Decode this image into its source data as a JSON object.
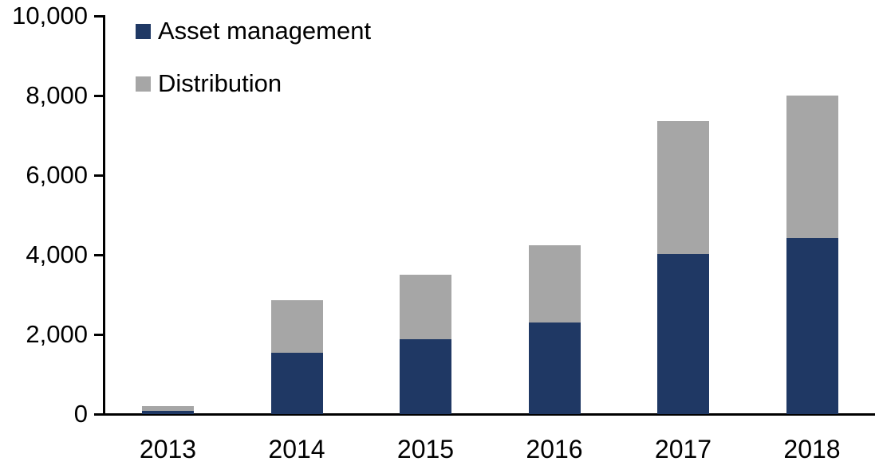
{
  "chart_data": {
    "type": "bar",
    "subtype": "stacked-column",
    "title": "",
    "xlabel": "",
    "ylabel": "",
    "categories": [
      "2013",
      "2014",
      "2015",
      "2016",
      "2017",
      "2018"
    ],
    "series": [
      {
        "name": "Asset management",
        "color": "#1F3864",
        "values": [
          90,
          1540,
          1880,
          2300,
          4020,
          4420
        ]
      },
      {
        "name": "Distribution",
        "color": "#A6A6A6",
        "values": [
          110,
          1320,
          1620,
          1940,
          3340,
          3580
        ]
      }
    ],
    "totals": [
      200,
      2860,
      3500,
      4240,
      7360,
      8000
    ],
    "ylim": [
      0,
      10000
    ],
    "yticks": [
      {
        "value": 0,
        "label": "0"
      },
      {
        "value": 2000,
        "label": "2,000"
      },
      {
        "value": 4000,
        "label": "4,000"
      },
      {
        "value": 6000,
        "label": "6,000"
      },
      {
        "value": 8000,
        "label": "8,000"
      },
      {
        "value": 10000,
        "label": "10,000"
      }
    ],
    "grid": false,
    "legend_position": "top-left-inside",
    "axis_color": "#000000",
    "text_color": "#000000",
    "background_color": "#FFFFFF"
  }
}
